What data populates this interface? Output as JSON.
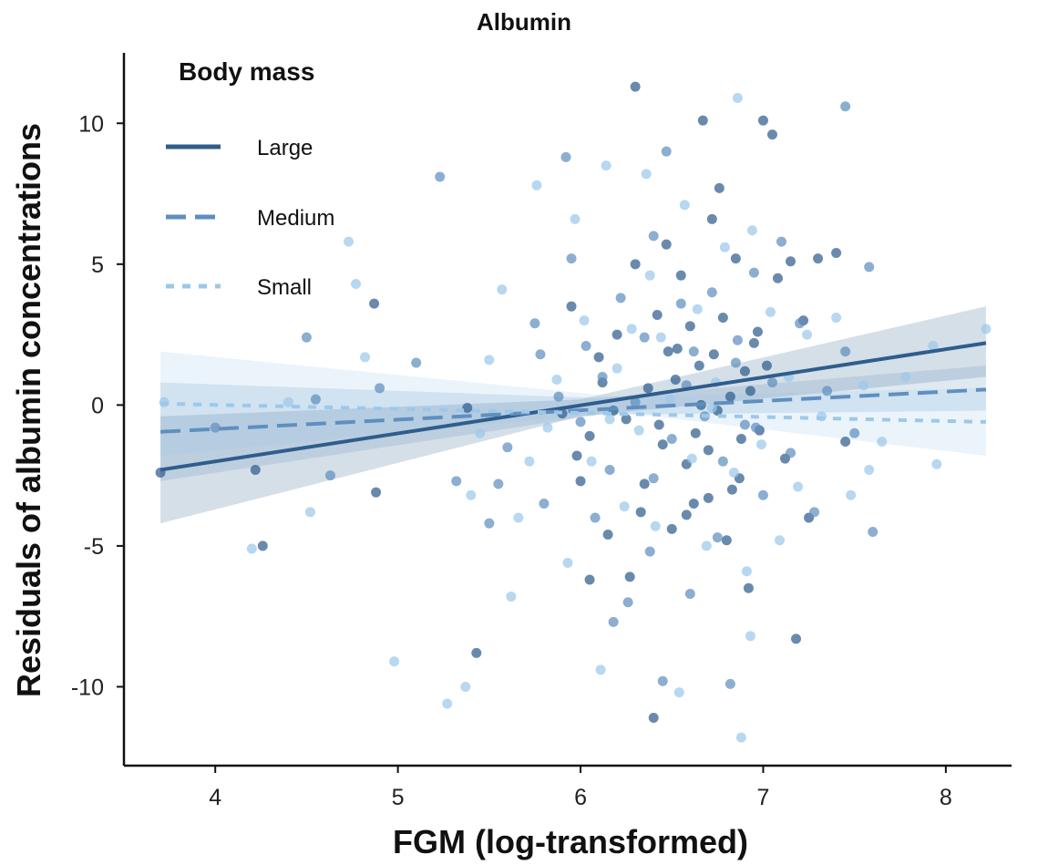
{
  "chart_data": {
    "type": "scatter",
    "title": "Albumin",
    "xlabel": "FGM (log-transformed)",
    "ylabel": "Residuals of albumin concentrations",
    "xlim": [
      3.5,
      8.35
    ],
    "ylim": [
      -12.8,
      12.5
    ],
    "x_ticks": [
      4,
      5,
      6,
      7,
      8
    ],
    "y_ticks": [
      10,
      5,
      0,
      -5,
      -10
    ],
    "x_tick_labels": [
      "4",
      "5",
      "6",
      "7",
      "8"
    ],
    "y_tick_labels": [
      "10",
      "5",
      "0",
      "-5",
      "-10"
    ],
    "grid": false,
    "legend": {
      "title": "Body mass",
      "position": "top-left"
    },
    "series": [
      {
        "name": "Large",
        "color": "#2f5d8c",
        "line_style": "solid",
        "fit": {
          "x": [
            3.7,
            8.22
          ],
          "y": [
            -2.3,
            2.2
          ]
        },
        "ci_upper": [
          [
            3.7,
            -0.4
          ],
          [
            6.0,
            0.2
          ],
          [
            8.22,
            3.5
          ]
        ],
        "ci_lower": [
          [
            3.7,
            -4.2
          ],
          [
            6.0,
            -0.4
          ],
          [
            8.22,
            1.0
          ]
        ],
        "points": [
          [
            3.7,
            -2.4
          ],
          [
            4.22,
            -2.3
          ],
          [
            4.26,
            -5.0
          ],
          [
            4.87,
            3.6
          ],
          [
            4.88,
            -3.1
          ],
          [
            5.43,
            -8.8
          ],
          [
            5.38,
            -0.1
          ],
          [
            5.9,
            -0.3
          ],
          [
            5.95,
            3.5
          ],
          [
            6.0,
            -2.7
          ],
          [
            6.05,
            -6.2
          ],
          [
            6.1,
            1.7
          ],
          [
            6.15,
            -4.6
          ],
          [
            6.2,
            2.5
          ],
          [
            6.25,
            -0.5
          ],
          [
            6.3,
            5.0
          ],
          [
            6.33,
            -3.8
          ],
          [
            6.37,
            0.6
          ],
          [
            6.4,
            -11.1
          ],
          [
            6.42,
            3.2
          ],
          [
            6.45,
            -1.4
          ],
          [
            6.48,
            1.9
          ],
          [
            6.5,
            -4.4
          ],
          [
            6.52,
            0.9
          ],
          [
            6.55,
            4.6
          ],
          [
            6.58,
            -2.1
          ],
          [
            6.6,
            2.8
          ],
          [
            6.62,
            -3.5
          ],
          [
            6.65,
            1.4
          ],
          [
            6.67,
            10.1
          ],
          [
            6.7,
            -1.6
          ],
          [
            6.72,
            6.6
          ],
          [
            6.75,
            -0.2
          ],
          [
            6.78,
            3.1
          ],
          [
            6.8,
            -4.8
          ],
          [
            6.82,
            0.3
          ],
          [
            6.85,
            5.2
          ],
          [
            6.87,
            -2.6
          ],
          [
            6.9,
            1.2
          ],
          [
            6.92,
            -6.5
          ],
          [
            6.95,
            2.2
          ],
          [
            6.98,
            -0.9
          ],
          [
            7.0,
            10.1
          ],
          [
            7.05,
            9.6
          ],
          [
            7.08,
            4.5
          ],
          [
            7.12,
            -1.9
          ],
          [
            7.15,
            5.1
          ],
          [
            7.18,
            -8.3
          ],
          [
            7.22,
            3.0
          ],
          [
            7.25,
            -4.0
          ],
          [
            7.3,
            5.2
          ],
          [
            7.4,
            5.4
          ],
          [
            7.45,
            -1.3
          ],
          [
            6.3,
            11.3
          ],
          [
            6.05,
            -1.1
          ],
          [
            6.18,
            -0.2
          ],
          [
            6.35,
            -2.8
          ],
          [
            6.58,
            -3.9
          ],
          [
            6.66,
            0.0
          ],
          [
            6.76,
            7.7
          ],
          [
            6.88,
            -1.2
          ],
          [
            7.02,
            1.4
          ],
          [
            6.12,
            0.8
          ],
          [
            6.43,
            -0.7
          ],
          [
            6.53,
            2.0
          ],
          [
            6.63,
            -1.0
          ],
          [
            6.73,
            1.8
          ],
          [
            6.83,
            -3.0
          ],
          [
            6.93,
            0.5
          ],
          [
            6.27,
            -6.1
          ],
          [
            6.47,
            5.7
          ],
          [
            6.97,
            2.6
          ],
          [
            5.98,
            -1.8
          ],
          [
            6.7,
            -3.3
          ]
        ]
      },
      {
        "name": "Medium",
        "color": "#5f8fbf",
        "line_style": "dashed",
        "fit": {
          "x": [
            3.7,
            8.22
          ],
          "y": [
            -0.95,
            0.55
          ]
        },
        "ci_upper": [
          [
            3.7,
            0.8
          ],
          [
            6.1,
            0.25
          ],
          [
            8.22,
            1.4
          ]
        ],
        "ci_lower": [
          [
            3.7,
            -2.7
          ],
          [
            6.1,
            -0.35
          ],
          [
            8.22,
            -0.2
          ]
        ],
        "points": [
          [
            4.0,
            -0.8
          ],
          [
            4.5,
            2.4
          ],
          [
            4.55,
            0.2
          ],
          [
            4.63,
            -2.5
          ],
          [
            4.9,
            0.6
          ],
          [
            5.1,
            1.5
          ],
          [
            5.23,
            8.1
          ],
          [
            5.32,
            -2.7
          ],
          [
            5.5,
            -4.2
          ],
          [
            5.55,
            -2.8
          ],
          [
            5.6,
            -1.5
          ],
          [
            5.75,
            2.9
          ],
          [
            5.78,
            1.8
          ],
          [
            5.8,
            -3.5
          ],
          [
            5.88,
            0.3
          ],
          [
            5.92,
            8.8
          ],
          [
            5.95,
            5.2
          ],
          [
            6.0,
            -0.6
          ],
          [
            6.03,
            2.1
          ],
          [
            6.08,
            -4.0
          ],
          [
            6.12,
            1.0
          ],
          [
            6.16,
            -2.3
          ],
          [
            6.22,
            3.8
          ],
          [
            6.26,
            -7.0
          ],
          [
            6.3,
            0.1
          ],
          [
            6.35,
            2.4
          ],
          [
            6.38,
            -5.2
          ],
          [
            6.4,
            6.0
          ],
          [
            6.45,
            -9.8
          ],
          [
            6.5,
            -1.2
          ],
          [
            6.55,
            3.6
          ],
          [
            6.6,
            -6.7
          ],
          [
            6.62,
            1.9
          ],
          [
            6.68,
            -0.4
          ],
          [
            6.72,
            4.0
          ],
          [
            6.78,
            -2.0
          ],
          [
            6.82,
            -9.9
          ],
          [
            6.86,
            2.3
          ],
          [
            6.9,
            -0.7
          ],
          [
            6.95,
            4.7
          ],
          [
            7.0,
            -3.2
          ],
          [
            7.05,
            0.8
          ],
          [
            7.1,
            5.8
          ],
          [
            7.15,
            -1.7
          ],
          [
            7.2,
            2.9
          ],
          [
            7.28,
            -3.8
          ],
          [
            7.35,
            0.5
          ],
          [
            7.45,
            1.9
          ],
          [
            7.5,
            -1.0
          ],
          [
            7.58,
            4.9
          ],
          [
            7.6,
            -4.5
          ],
          [
            7.45,
            10.6
          ],
          [
            6.47,
            9.0
          ],
          [
            6.18,
            -7.7
          ],
          [
            6.96,
            -0.8
          ],
          [
            6.4,
            -2.6
          ],
          [
            6.58,
            0.7
          ],
          [
            6.75,
            -4.7
          ],
          [
            6.85,
            1.5
          ]
        ]
      },
      {
        "name": "Small",
        "color": "#9cc8ea",
        "line_style": "dotted",
        "fit": {
          "x": [
            3.7,
            8.22
          ],
          "y": [
            0.05,
            -0.6
          ]
        },
        "ci_upper": [
          [
            3.7,
            1.9
          ],
          [
            6.2,
            0.3
          ],
          [
            8.22,
            0.6
          ]
        ],
        "ci_lower": [
          [
            3.7,
            -1.8
          ],
          [
            6.2,
            -0.25
          ],
          [
            8.22,
            -1.8
          ]
        ],
        "points": [
          [
            3.72,
            0.1
          ],
          [
            4.2,
            -5.1
          ],
          [
            4.4,
            0.1
          ],
          [
            4.52,
            -3.8
          ],
          [
            4.73,
            5.8
          ],
          [
            4.77,
            4.3
          ],
          [
            4.82,
            1.7
          ],
          [
            4.98,
            -9.1
          ],
          [
            5.27,
            -10.6
          ],
          [
            5.37,
            -10.0
          ],
          [
            5.4,
            -3.2
          ],
          [
            5.45,
            -1.0
          ],
          [
            5.5,
            1.6
          ],
          [
            5.57,
            4.1
          ],
          [
            5.62,
            -6.8
          ],
          [
            5.66,
            -4.0
          ],
          [
            5.72,
            -2.0
          ],
          [
            5.76,
            7.8
          ],
          [
            5.82,
            -0.8
          ],
          [
            5.87,
            0.9
          ],
          [
            5.93,
            -5.6
          ],
          [
            5.97,
            6.6
          ],
          [
            6.02,
            3.0
          ],
          [
            6.06,
            -2.0
          ],
          [
            6.11,
            -9.4
          ],
          [
            6.14,
            8.5
          ],
          [
            6.2,
            1.3
          ],
          [
            6.24,
            -3.6
          ],
          [
            6.28,
            2.7
          ],
          [
            6.32,
            -0.9
          ],
          [
            6.36,
            8.2
          ],
          [
            6.41,
            -4.3
          ],
          [
            6.44,
            2.4
          ],
          [
            6.49,
            0.2
          ],
          [
            6.54,
            -10.2
          ],
          [
            6.57,
            7.1
          ],
          [
            6.61,
            -1.9
          ],
          [
            6.64,
            3.4
          ],
          [
            6.69,
            -5.0
          ],
          [
            6.74,
            0.8
          ],
          [
            6.79,
            5.6
          ],
          [
            6.84,
            -2.4
          ],
          [
            6.86,
            10.9
          ],
          [
            6.88,
            -11.8
          ],
          [
            6.91,
            -5.9
          ],
          [
            6.94,
            6.2
          ],
          [
            6.99,
            -1.4
          ],
          [
            7.04,
            3.3
          ],
          [
            7.09,
            -4.8
          ],
          [
            7.14,
            1.0
          ],
          [
            7.19,
            -2.9
          ],
          [
            7.24,
            2.5
          ],
          [
            7.32,
            -0.4
          ],
          [
            7.4,
            3.1
          ],
          [
            7.48,
            -3.2
          ],
          [
            7.55,
            0.7
          ],
          [
            7.65,
            -1.3
          ],
          [
            7.78,
            1.0
          ],
          [
            7.95,
            -2.1
          ],
          [
            8.22,
            2.7
          ],
          [
            7.93,
            2.1
          ],
          [
            7.58,
            -2.3
          ],
          [
            6.16,
            -0.5
          ],
          [
            6.72,
            -0.1
          ],
          [
            6.38,
            4.6
          ],
          [
            6.93,
            -8.2
          ]
        ]
      }
    ]
  }
}
